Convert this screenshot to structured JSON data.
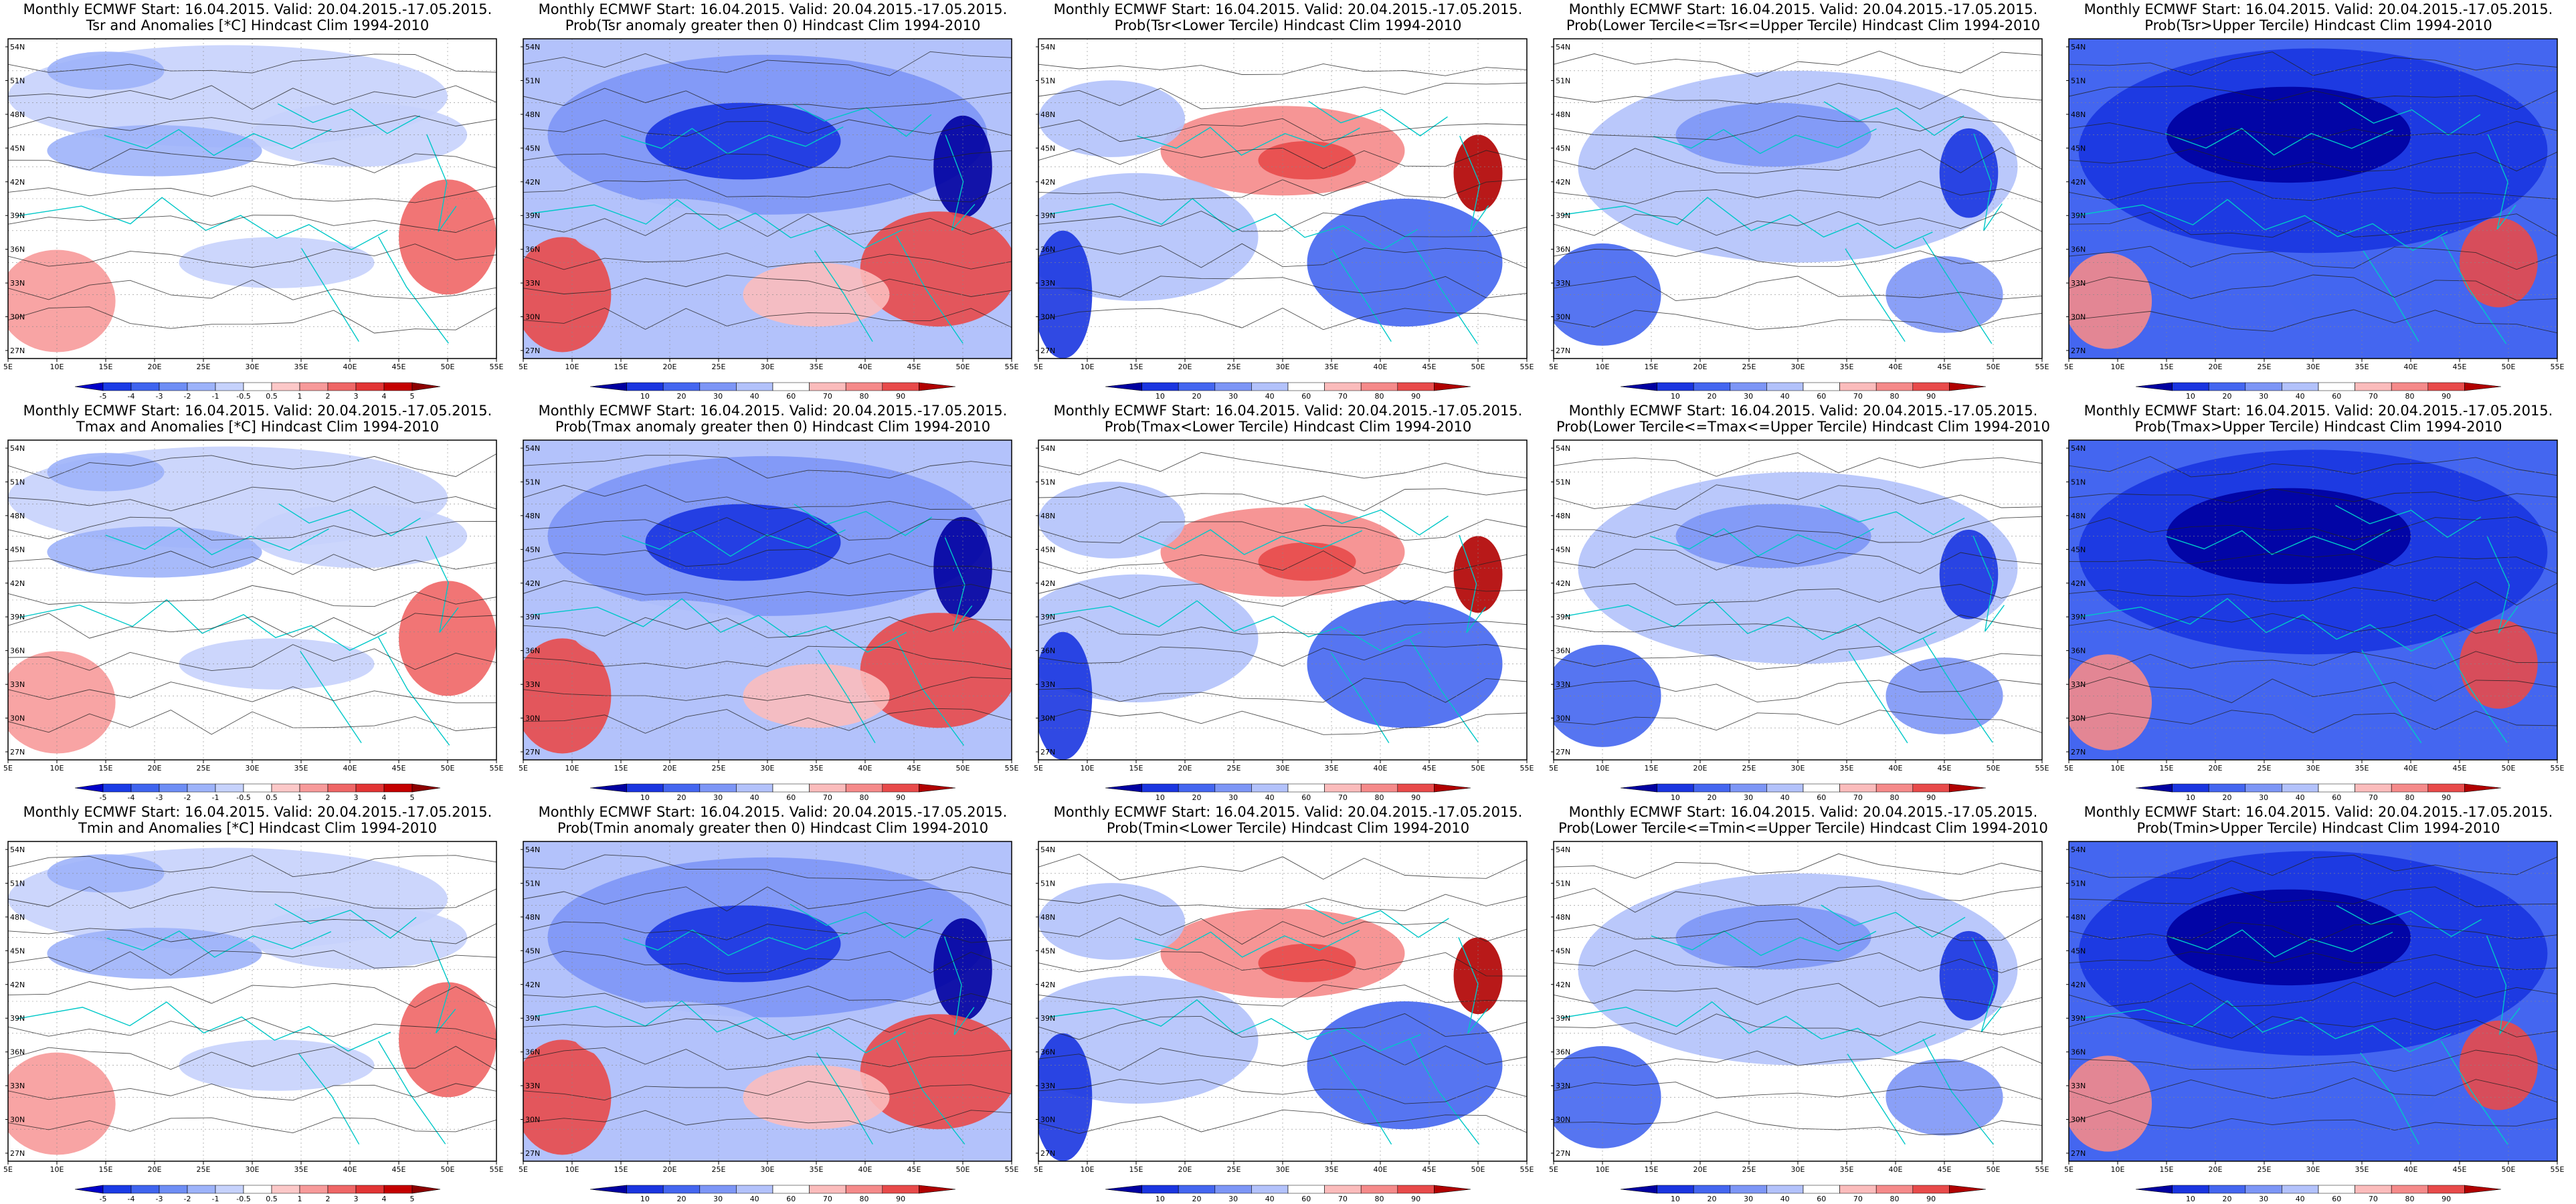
{
  "common": {
    "title_line1": "Monthly ECMWF Start: 16.04.2015. Valid: 20.04.2015.-17.05.2015.",
    "lon_ticks": [
      "5E",
      "10E",
      "15E",
      "20E",
      "25E",
      "30E",
      "35E",
      "40E",
      "45E",
      "50E",
      "55E"
    ],
    "lat_ticks": [
      "54N",
      "51N",
      "48N",
      "45N",
      "42N",
      "39N",
      "36N",
      "33N",
      "30N",
      "27N"
    ]
  },
  "colorbars": {
    "anomaly": [
      "-5",
      "-4",
      "-3",
      "-2",
      "-1",
      "-0.5",
      "0.5",
      "1",
      "2",
      "3",
      "4",
      "5"
    ],
    "probability": [
      "10",
      "20",
      "30",
      "40",
      "60",
      "70",
      "80",
      "90"
    ],
    "anomaly_colors": [
      "#0000c8",
      "#1a3be6",
      "#3f64ef",
      "#6e8ef5",
      "#9db3fa",
      "#c6d2fc",
      "#ffffff",
      "#fcc8c8",
      "#f79a9a",
      "#ef6666",
      "#e23434",
      "#c40000",
      "#8c0000"
    ],
    "prob_colors": [
      "#0000a0",
      "#1a35e0",
      "#4466f0",
      "#7d96f6",
      "#b3c2fb",
      "#ffffff",
      "#fbbcbc",
      "#f58a8a",
      "#e84a4a",
      "#b00000"
    ]
  },
  "panels": [
    {
      "title2": "Tsr and Anomalies [*C] Hindcast Clim 1994-2010",
      "cbar": "anomaly"
    },
    {
      "title2": "Prob(Tsr anomaly greater then 0) Hindcast Clim 1994-2010",
      "cbar": "probability"
    },
    {
      "title2": "Prob(Tsr<Lower Tercile) Hindcast Clim 1994-2010",
      "cbar": "probability"
    },
    {
      "title2": "Prob(Lower Tercile<=Tsr<=Upper Tercile) Hindcast Clim 1994-2010",
      "cbar": "probability"
    },
    {
      "title2": "Prob(Tsr>Upper Tercile) Hindcast Clim 1994-2010",
      "cbar": "probability"
    },
    {
      "title2": "Tmax and Anomalies [*C] Hindcast Clim 1994-2010",
      "cbar": "anomaly"
    },
    {
      "title2": "Prob(Tmax anomaly greater then 0) Hindcast Clim 1994-2010",
      "cbar": "probability"
    },
    {
      "title2": "Prob(Tmax<Lower Tercile) Hindcast Clim 1994-2010",
      "cbar": "probability"
    },
    {
      "title2": "Prob(Lower Tercile<=Tmax<=Upper Tercile) Hindcast Clim 1994-2010",
      "cbar": "probability"
    },
    {
      "title2": "Prob(Tmax>Upper Tercile) Hindcast Clim 1994-2010",
      "cbar": "probability"
    },
    {
      "title2": "Tmin and Anomalies [*C] Hindcast Clim 1994-2010",
      "cbar": "anomaly"
    },
    {
      "title2": "Prob(Tmin anomaly greater then 0) Hindcast Clim 1994-2010",
      "cbar": "probability"
    },
    {
      "title2": "Prob(Tmin<Lower Tercile) Hindcast Clim 1994-2010",
      "cbar": "probability"
    },
    {
      "title2": "Prob(Lower Tercile<=Tmin<=Upper Tercile) Hindcast Clim 1994-2010",
      "cbar": "probability"
    },
    {
      "title2": "Prob(Tmin>Upper Tercile) Hindcast Clim 1994-2010",
      "cbar": "probability"
    }
  ]
}
